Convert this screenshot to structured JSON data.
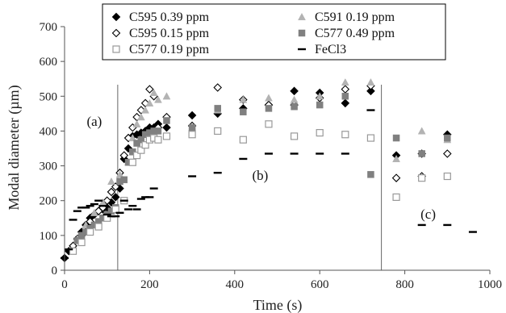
{
  "chart_data": {
    "type": "scatter",
    "title": "",
    "xlabel": "Time (s)",
    "ylabel": "Modal diameter (µm)",
    "xlim": [
      0,
      1000
    ],
    "ylim": [
      0,
      700
    ],
    "xticks": [
      0,
      200,
      400,
      600,
      800,
      1000
    ],
    "yticks": [
      0,
      100,
      200,
      300,
      400,
      500,
      600,
      700
    ],
    "grid": false,
    "legend_position": "top",
    "vlines": [
      125,
      745
    ],
    "annotations": [
      {
        "text": "(a)",
        "x": 70,
        "y": 415
      },
      {
        "text": "(b)",
        "x": 460,
        "y": 260
      },
      {
        "text": "(c)",
        "x": 855,
        "y": 148
      }
    ],
    "series": [
      {
        "name": "C595 0.39 ppm",
        "marker": "diamond-filled",
        "color": "#000000",
        "x": [
          0,
          10,
          30,
          40,
          50,
          60,
          70,
          80,
          90,
          100,
          110,
          120,
          130,
          140,
          150,
          160,
          170,
          180,
          190,
          200,
          210,
          220,
          240,
          300,
          360,
          420,
          480,
          540,
          600,
          660,
          720,
          780,
          840,
          900
        ],
        "y": [
          35,
          55,
          90,
          110,
          130,
          150,
          160,
          170,
          175,
          180,
          195,
          210,
          235,
          320,
          350,
          385,
          390,
          395,
          400,
          410,
          410,
          420,
          410,
          445,
          450,
          465,
          475,
          515,
          510,
          480,
          515,
          330,
          335,
          390
        ]
      },
      {
        "name": "C595 0.15 ppm",
        "marker": "diamond-open",
        "color": "#000000",
        "x": [
          20,
          40,
          60,
          80,
          90,
          100,
          110,
          120,
          130,
          140,
          150,
          160,
          170,
          180,
          190,
          200,
          210,
          220,
          240,
          300,
          360,
          420,
          480,
          540,
          600,
          660,
          720,
          780,
          840,
          900
        ],
        "y": [
          70,
          100,
          140,
          170,
          180,
          200,
          225,
          240,
          280,
          330,
          380,
          410,
          440,
          460,
          480,
          520,
          500,
          410,
          440,
          415,
          525,
          490,
          475,
          475,
          495,
          520,
          530,
          265,
          270,
          335
        ]
      },
      {
        "name": "C591 0.19 ppm",
        "marker": "triangle-filled",
        "color": "#b3b3b3",
        "x": [
          30,
          50,
          70,
          90,
          110,
          130,
          150,
          160,
          170,
          180,
          190,
          200,
          210,
          220,
          240,
          300,
          360,
          420,
          480,
          540,
          600,
          660,
          720,
          780,
          840,
          900
        ],
        "y": [
          90,
          130,
          165,
          195,
          255,
          275,
          310,
          380,
          420,
          440,
          460,
          480,
          510,
          490,
          500,
          410,
          460,
          490,
          495,
          490,
          500,
          540,
          540,
          320,
          400,
          375
        ]
      },
      {
        "name": "C577 0.49 ppm",
        "marker": "square-filled",
        "color": "#808080",
        "x": [
          30,
          40,
          50,
          60,
          70,
          80,
          90,
          100,
          110,
          120,
          130,
          140,
          150,
          160,
          170,
          180,
          190,
          200,
          210,
          220,
          240,
          300,
          360,
          420,
          480,
          540,
          600,
          660,
          720,
          780,
          840,
          900
        ],
        "y": [
          85,
          100,
          110,
          120,
          130,
          140,
          150,
          160,
          170,
          180,
          255,
          260,
          310,
          340,
          365,
          375,
          390,
          395,
          400,
          400,
          430,
          410,
          465,
          455,
          465,
          470,
          475,
          500,
          275,
          380,
          335,
          380
        ]
      },
      {
        "name": "C577 0.19 ppm",
        "marker": "square-open",
        "color": "#999999",
        "x": [
          20,
          40,
          60,
          80,
          100,
          120,
          140,
          160,
          170,
          180,
          190,
          200,
          210,
          220,
          240,
          300,
          360,
          420,
          480,
          540,
          600,
          660,
          720,
          780,
          840,
          900
        ],
        "y": [
          55,
          80,
          110,
          125,
          150,
          175,
          200,
          310,
          330,
          345,
          360,
          375,
          380,
          375,
          385,
          390,
          400,
          375,
          420,
          385,
          395,
          390,
          380,
          210,
          265,
          270
        ]
      },
      {
        "name": "FeCl3",
        "marker": "dash",
        "color": "#000000",
        "x": [
          0,
          10,
          20,
          30,
          40,
          50,
          60,
          70,
          80,
          90,
          100,
          110,
          120,
          130,
          140,
          150,
          160,
          170,
          180,
          190,
          200,
          210,
          300,
          360,
          420,
          480,
          540,
          600,
          660,
          720,
          840,
          900,
          960
        ],
        "y": [
          35,
          60,
          145,
          170,
          180,
          180,
          185,
          190,
          200,
          185,
          160,
          155,
          155,
          165,
          200,
          175,
          185,
          175,
          205,
          210,
          210,
          235,
          270,
          280,
          320,
          335,
          335,
          335,
          335,
          460,
          130,
          130,
          110
        ]
      }
    ]
  }
}
